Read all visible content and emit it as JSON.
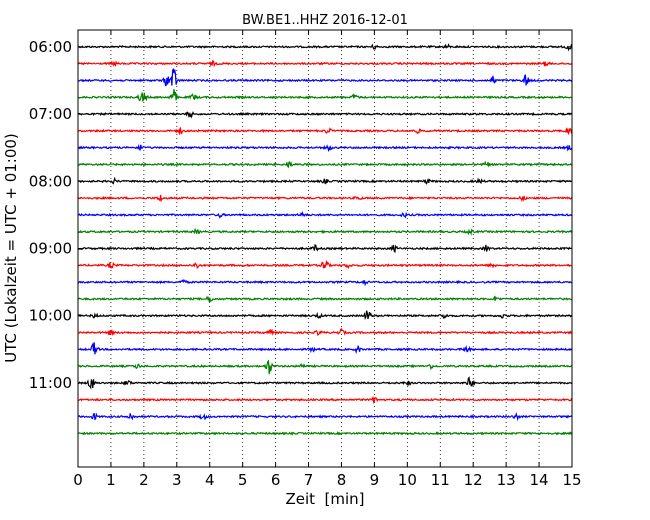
{
  "chart_data": {
    "type": "line",
    "title": "BW.BE1..HHZ 2016-12-01",
    "xlabel": "Zeit  [min]",
    "ylabel": "UTC (Lokalzeit = UTC + 01:00)",
    "xlim": [
      0,
      15
    ],
    "x_ticks": [
      "0",
      "1",
      "2",
      "3",
      "4",
      "5",
      "6",
      "7",
      "8",
      "9",
      "10",
      "11",
      "12",
      "13",
      "14",
      "15"
    ],
    "y_range": [
      "05:45",
      "12:15"
    ],
    "y_ticks": [
      {
        "time": "06:00",
        "label": "06:00"
      },
      {
        "time": "07:00",
        "label": "07:00"
      },
      {
        "time": "08:00",
        "label": "08:00"
      },
      {
        "time": "09:00",
        "label": "09:00"
      },
      {
        "time": "10:00",
        "label": "10:00"
      },
      {
        "time": "11:00",
        "label": "11:00"
      }
    ],
    "vertical_grid": "dotted",
    "trace_colors": [
      "#000000",
      "#ff0000",
      "#0000ff",
      "#008000"
    ],
    "traces": [
      {
        "start": "06:00",
        "color": "#000000",
        "events": [
          [
            9.0,
            2
          ],
          [
            11.2,
            2
          ],
          [
            14.9,
            3
          ]
        ]
      },
      {
        "start": "06:15",
        "color": "#ff0000",
        "events": [
          [
            1.1,
            2
          ],
          [
            4.1,
            2
          ],
          [
            14.2,
            2
          ]
        ]
      },
      {
        "start": "06:30",
        "color": "#0000ff",
        "events": [
          [
            2.9,
            14
          ],
          [
            2.7,
            6
          ],
          [
            13.6,
            6
          ],
          [
            12.6,
            4
          ]
        ]
      },
      {
        "start": "06:45",
        "color": "#008000",
        "events": [
          [
            1.9,
            3
          ],
          [
            2.0,
            4
          ],
          [
            2.9,
            8
          ],
          [
            3.5,
            3
          ],
          [
            8.4,
            3
          ]
        ]
      },
      {
        "start": "07:00",
        "color": "#000000",
        "events": [
          [
            3.4,
            3
          ]
        ]
      },
      {
        "start": "07:15",
        "color": "#ff0000",
        "events": [
          [
            3.1,
            3
          ],
          [
            7.6,
            3
          ],
          [
            10.3,
            2
          ],
          [
            14.9,
            3
          ]
        ]
      },
      {
        "start": "07:30",
        "color": "#0000ff",
        "events": [
          [
            1.9,
            3
          ],
          [
            7.6,
            3
          ],
          [
            14.9,
            2
          ]
        ]
      },
      {
        "start": "07:45",
        "color": "#008000",
        "events": [
          [
            6.4,
            3
          ],
          [
            12.4,
            2
          ]
        ]
      },
      {
        "start": "08:00",
        "color": "#000000",
        "events": [
          [
            1.1,
            2
          ],
          [
            7.5,
            2
          ],
          [
            10.6,
            2
          ],
          [
            12.2,
            2
          ]
        ]
      },
      {
        "start": "08:15",
        "color": "#ff0000",
        "events": [
          [
            2.5,
            3
          ],
          [
            8.5,
            2
          ],
          [
            13.5,
            2
          ]
        ]
      },
      {
        "start": "08:30",
        "color": "#0000ff",
        "events": [
          [
            4.3,
            2
          ],
          [
            6.8,
            2
          ],
          [
            9.9,
            2
          ]
        ]
      },
      {
        "start": "08:45",
        "color": "#008000",
        "events": [
          [
            3.6,
            2
          ],
          [
            11.9,
            2
          ]
        ]
      },
      {
        "start": "09:00",
        "color": "#000000",
        "events": [
          [
            7.2,
            3
          ],
          [
            9.6,
            3
          ],
          [
            12.4,
            3
          ]
        ]
      },
      {
        "start": "09:15",
        "color": "#ff0000",
        "events": [
          [
            1.0,
            3
          ],
          [
            3.6,
            3
          ],
          [
            7.5,
            7
          ],
          [
            8.2,
            2
          ],
          [
            12.6,
            2
          ]
        ]
      },
      {
        "start": "09:30",
        "color": "#0000ff",
        "events": [
          [
            3.2,
            2
          ],
          [
            8.7,
            2
          ]
        ]
      },
      {
        "start": "09:45",
        "color": "#008000",
        "events": [
          [
            4.0,
            3
          ],
          [
            12.7,
            2
          ]
        ]
      },
      {
        "start": "10:00",
        "color": "#000000",
        "events": [
          [
            0.5,
            2
          ],
          [
            7.3,
            2
          ],
          [
            8.8,
            6
          ],
          [
            11.1,
            3
          ],
          [
            12.9,
            2
          ]
        ]
      },
      {
        "start": "10:15",
        "color": "#ff0000",
        "events": [
          [
            1.0,
            2
          ],
          [
            5.8,
            4
          ],
          [
            7.3,
            2
          ],
          [
            8.0,
            3
          ]
        ]
      },
      {
        "start": "10:30",
        "color": "#0000ff",
        "events": [
          [
            0.5,
            7
          ],
          [
            7.1,
            2
          ],
          [
            8.5,
            3
          ],
          [
            11.8,
            3
          ]
        ]
      },
      {
        "start": "10:45",
        "color": "#008000",
        "events": [
          [
            1.8,
            2
          ],
          [
            5.8,
            8
          ],
          [
            6.8,
            2
          ],
          [
            10.7,
            2
          ]
        ]
      },
      {
        "start": "11:00",
        "color": "#000000",
        "events": [
          [
            0.4,
            7
          ],
          [
            1.5,
            3
          ],
          [
            10.0,
            2
          ],
          [
            11.9,
            6
          ]
        ]
      },
      {
        "start": "11:15",
        "color": "#ff0000",
        "events": [
          [
            9.0,
            3
          ]
        ]
      },
      {
        "start": "11:30",
        "color": "#0000ff",
        "events": [
          [
            0.5,
            3
          ],
          [
            1.6,
            4
          ],
          [
            3.8,
            3
          ],
          [
            13.3,
            3
          ]
        ]
      },
      {
        "start": "11:45",
        "color": "#008000",
        "events": []
      }
    ]
  }
}
